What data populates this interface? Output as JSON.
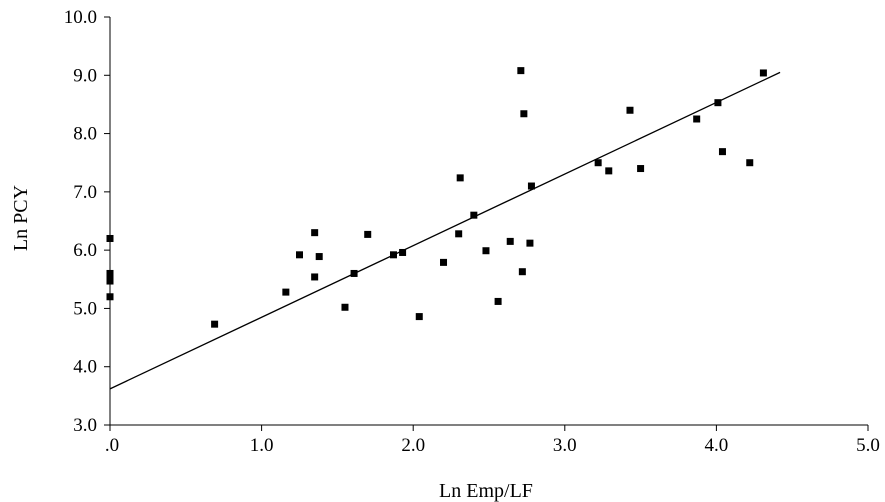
{
  "chart_data": {
    "type": "scatter",
    "title": "",
    "xlabel": "Ln Emp/LF",
    "ylabel": "Ln PCY",
    "xlim": [
      0,
      5
    ],
    "ylim": [
      3,
      10
    ],
    "x_ticks": [
      0,
      1,
      2,
      3,
      4,
      5
    ],
    "x_tick_labels": [
      ".0",
      "1.0",
      "2.0",
      "3.0",
      "4.0",
      "5.0"
    ],
    "y_ticks": [
      3,
      4,
      5,
      6,
      7,
      8,
      9,
      10
    ],
    "y_tick_labels": [
      "3.0",
      "4.0",
      "5.0",
      "6.0",
      "7.0",
      "8.0",
      "9.0",
      "10.0"
    ],
    "grid": false,
    "legend": "none",
    "marker": "square",
    "series": [
      {
        "points": [
          [
            0.0,
            6.2
          ],
          [
            0.0,
            5.6
          ],
          [
            0.0,
            5.55
          ],
          [
            0.0,
            5.47
          ],
          [
            0.0,
            5.2
          ],
          [
            0.69,
            4.73
          ],
          [
            1.16,
            5.28
          ],
          [
            1.25,
            5.92
          ],
          [
            1.35,
            6.3
          ],
          [
            1.35,
            5.54
          ],
          [
            1.38,
            5.89
          ],
          [
            1.55,
            5.02
          ],
          [
            1.61,
            5.6
          ],
          [
            1.7,
            6.27
          ],
          [
            1.87,
            5.92
          ],
          [
            1.93,
            5.96
          ],
          [
            2.04,
            4.86
          ],
          [
            2.2,
            5.79
          ],
          [
            2.3,
            6.28
          ],
          [
            2.31,
            7.24
          ],
          [
            2.4,
            6.6
          ],
          [
            2.48,
            5.99
          ],
          [
            2.56,
            5.12
          ],
          [
            2.64,
            6.15
          ],
          [
            2.71,
            9.08
          ],
          [
            2.72,
            5.63
          ],
          [
            2.73,
            8.34
          ],
          [
            2.77,
            6.12
          ],
          [
            2.78,
            7.1
          ],
          [
            3.22,
            7.5
          ],
          [
            3.29,
            7.36
          ],
          [
            3.43,
            8.4
          ],
          [
            3.5,
            7.4
          ],
          [
            3.87,
            8.25
          ],
          [
            4.01,
            8.53
          ],
          [
            4.04,
            7.69
          ],
          [
            4.22,
            7.5
          ],
          [
            4.31,
            9.04
          ]
        ]
      }
    ],
    "trendline": {
      "type": "linear",
      "x": [
        0,
        4.42
      ],
      "y": [
        3.62,
        9.05
      ]
    }
  }
}
